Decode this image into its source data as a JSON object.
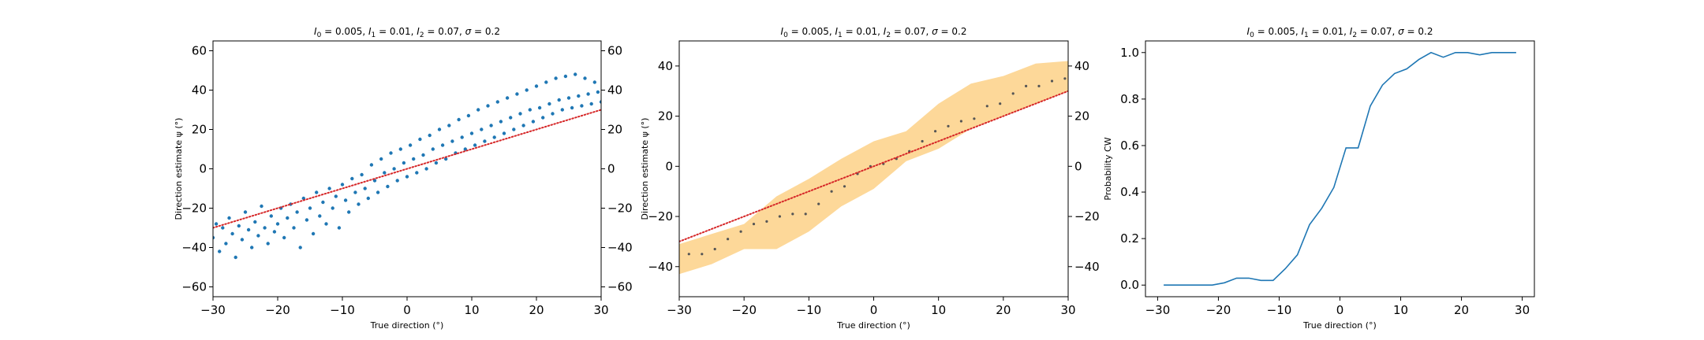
{
  "chart_data": [
    {
      "type": "scatter",
      "title": "I_0 = 0.005, I_1 = 0.01, I_2 = 0.07, σ = 0.2",
      "title_parts": {
        "p0": "I",
        "s0": "0",
        "v0": " = 0.005, ",
        "p1": "I",
        "s1": "1",
        "v1": " = 0.01, ",
        "p2": "I",
        "s2": "2",
        "v2": " = 0.07, ",
        "sig": "σ",
        "vs": " = 0.2"
      },
      "xlabel": "True direction (°)",
      "ylabel": "Direction estimate ψ (°)",
      "xlim": [
        -30,
        30
      ],
      "ylim": [
        -65,
        65
      ],
      "xticks": [
        "−30",
        "−20",
        "−10",
        "0",
        "10",
        "20",
        "30"
      ],
      "xtick_values": [
        -30,
        -20,
        -10,
        0,
        10,
        20,
        30
      ],
      "yticks": [
        "−60",
        "−40",
        "−20",
        "0",
        "20",
        "40",
        "60"
      ],
      "ytick_values": [
        -60,
        -40,
        -20,
        0,
        20,
        40,
        60
      ],
      "twin_y": true,
      "grid": false,
      "series": [
        {
          "kind": "scatter",
          "color": "#1f77b4",
          "points": [
            [
              -30,
              -35
            ],
            [
              -29.5,
              -28
            ],
            [
              -29,
              -42
            ],
            [
              -28.5,
              -30
            ],
            [
              -28,
              -38
            ],
            [
              -27.5,
              -25
            ],
            [
              -27,
              -33
            ],
            [
              -26.5,
              -45
            ],
            [
              -26,
              -29
            ],
            [
              -25.5,
              -36
            ],
            [
              -25,
              -22
            ],
            [
              -24.5,
              -31
            ],
            [
              -24,
              -40
            ],
            [
              -23.5,
              -27
            ],
            [
              -23,
              -34
            ],
            [
              -22.5,
              -19
            ],
            [
              -22,
              -30
            ],
            [
              -21.5,
              -38
            ],
            [
              -21,
              -24
            ],
            [
              -20.5,
              -32
            ],
            [
              -20,
              -28
            ],
            [
              -19.5,
              -20
            ],
            [
              -19,
              -35
            ],
            [
              -18.5,
              -25
            ],
            [
              -18,
              -18
            ],
            [
              -17.5,
              -30
            ],
            [
              -17,
              -22
            ],
            [
              -16.5,
              -40
            ],
            [
              -16,
              -15
            ],
            [
              -15.5,
              -26
            ],
            [
              -15,
              -20
            ],
            [
              -14.5,
              -33
            ],
            [
              -14,
              -12
            ],
            [
              -13.5,
              -24
            ],
            [
              -13,
              -17
            ],
            [
              -12.5,
              -28
            ],
            [
              -12,
              -10
            ],
            [
              -11.5,
              -20
            ],
            [
              -11,
              -14
            ],
            [
              -10.5,
              -30
            ],
            [
              -10,
              -8
            ],
            [
              -9.5,
              -16
            ],
            [
              -9,
              -22
            ],
            [
              -8.5,
              -5
            ],
            [
              -8,
              -12
            ],
            [
              -7.5,
              -18
            ],
            [
              -7,
              -3
            ],
            [
              -6.5,
              -10
            ],
            [
              -6,
              -15
            ],
            [
              -5.5,
              2
            ],
            [
              -5,
              -6
            ],
            [
              -4.5,
              -12
            ],
            [
              -4,
              5
            ],
            [
              -3.5,
              -2
            ],
            [
              -3,
              -9
            ],
            [
              -2.5,
              8
            ],
            [
              -2,
              0
            ],
            [
              -1.5,
              -6
            ],
            [
              -1,
              10
            ],
            [
              -0.5,
              3
            ],
            [
              0,
              -4
            ],
            [
              0.5,
              12
            ],
            [
              1,
              5
            ],
            [
              1.5,
              -2
            ],
            [
              2,
              15
            ],
            [
              2.5,
              7
            ],
            [
              3,
              0
            ],
            [
              3.5,
              17
            ],
            [
              4,
              10
            ],
            [
              4.5,
              3
            ],
            [
              5,
              20
            ],
            [
              5.5,
              12
            ],
            [
              6,
              5
            ],
            [
              6.5,
              22
            ],
            [
              7,
              14
            ],
            [
              7.5,
              8
            ],
            [
              8,
              25
            ],
            [
              8.5,
              16
            ],
            [
              9,
              10
            ],
            [
              9.5,
              27
            ],
            [
              10,
              18
            ],
            [
              10.5,
              12
            ],
            [
              11,
              30
            ],
            [
              11.5,
              20
            ],
            [
              12,
              14
            ],
            [
              12.5,
              32
            ],
            [
              13,
              22
            ],
            [
              13.5,
              16
            ],
            [
              14,
              34
            ],
            [
              14.5,
              24
            ],
            [
              15,
              18
            ],
            [
              15.5,
              36
            ],
            [
              16,
              26
            ],
            [
              16.5,
              20
            ],
            [
              17,
              38
            ],
            [
              17.5,
              28
            ],
            [
              18,
              22
            ],
            [
              18.5,
              40
            ],
            [
              19,
              30
            ],
            [
              19.5,
              24
            ],
            [
              20,
              42
            ],
            [
              20.5,
              31
            ],
            [
              21,
              26
            ],
            [
              21.5,
              44
            ],
            [
              22,
              33
            ],
            [
              22.5,
              28
            ],
            [
              23,
              46
            ],
            [
              23.5,
              35
            ],
            [
              24,
              30
            ],
            [
              24.5,
              47
            ],
            [
              25,
              36
            ],
            [
              25.5,
              31
            ],
            [
              26,
              48
            ],
            [
              26.5,
              37
            ],
            [
              27,
              32
            ],
            [
              27.5,
              46
            ],
            [
              28,
              38
            ],
            [
              28.5,
              33
            ],
            [
              29,
              44
            ],
            [
              29.5,
              39
            ],
            [
              30,
              34
            ]
          ]
        },
        {
          "kind": "line",
          "style": "dotted",
          "color": "#d62728",
          "points": [
            [
              -30,
              -30
            ],
            [
              30,
              30
            ]
          ]
        }
      ]
    },
    {
      "type": "line",
      "title": "I_0 = 0.005, I_1 = 0.01, I_2 = 0.07, σ = 0.2",
      "title_parts": {
        "p0": "I",
        "s0": "0",
        "v0": " = 0.005, ",
        "p1": "I",
        "s1": "1",
        "v1": " = 0.01, ",
        "p2": "I",
        "s2": "2",
        "v2": " = 0.07, ",
        "sig": "σ",
        "vs": " = 0.2"
      },
      "xlabel": "True direction (°)",
      "ylabel": "Direction estimate ψ (°)",
      "xlim": [
        -30,
        30
      ],
      "ylim": [
        -52,
        50
      ],
      "xticks": [
        "−30",
        "−20",
        "−10",
        "0",
        "10",
        "20",
        "30"
      ],
      "xtick_values": [
        -30,
        -20,
        -10,
        0,
        10,
        20,
        30
      ],
      "yticks": [
        "−40",
        "−20",
        "0",
        "20",
        "40"
      ],
      "ytick_values": [
        -40,
        -20,
        0,
        20,
        40
      ],
      "twin_y": true,
      "grid": false,
      "band_color": "#fdd899",
      "band": {
        "x": [
          -30,
          -25,
          -20,
          -15,
          -10,
          -5,
          0,
          5,
          10,
          15,
          20,
          25,
          30
        ],
        "lower": [
          -43,
          -39,
          -33,
          -33,
          -26,
          -16,
          -9,
          2,
          7,
          15,
          20,
          25,
          30
        ],
        "upper": [
          -31,
          -27,
          -23,
          -12,
          -5,
          3,
          10,
          14,
          25,
          33,
          36,
          41,
          42
        ]
      },
      "series": [
        {
          "kind": "points",
          "color": "#555555",
          "x": [
            -28.5,
            -26.5,
            -24.5,
            -22.5,
            -20.5,
            -18.5,
            -16.5,
            -14.5,
            -12.5,
            -10.5,
            -8.5,
            -6.5,
            -4.5,
            -2.5,
            -0.5,
            1.5,
            3.5,
            5.5,
            7.5,
            9.5,
            11.5,
            13.5,
            15.5,
            17.5,
            19.5,
            21.5,
            23.5,
            25.5,
            27.5,
            29.5
          ],
          "y": [
            -35,
            -35,
            -33,
            -29,
            -26,
            -23,
            -22,
            -20,
            -19,
            -19,
            -15,
            -10,
            -8,
            -3,
            0,
            1,
            3,
            6,
            10,
            14,
            16,
            18,
            19,
            24,
            25,
            29,
            32,
            32,
            34,
            35
          ]
        },
        {
          "kind": "line",
          "style": "dotted",
          "color": "#d62728",
          "x": [
            -30,
            30
          ],
          "y": [
            -30,
            30
          ]
        }
      ]
    },
    {
      "type": "line",
      "title": "I_0 = 0.005, I_1 = 0.01, I_2 = 0.07, σ = 0.2",
      "title_parts": {
        "p0": "I",
        "s0": "0",
        "v0": " = 0.005, ",
        "p1": "I",
        "s1": "1",
        "v1": " = 0.01, ",
        "p2": "I",
        "s2": "2",
        "v2": " = 0.07, ",
        "sig": "σ",
        "vs": " = 0.2"
      },
      "xlabel": "True direction (°)",
      "ylabel": "Probability CW",
      "xlim": [
        -32,
        32
      ],
      "ylim": [
        -0.05,
        1.05
      ],
      "xticks": [
        "−30",
        "−20",
        "−10",
        "0",
        "10",
        "20",
        "30"
      ],
      "xtick_values": [
        -30,
        -20,
        -10,
        0,
        10,
        20,
        30
      ],
      "yticks": [
        "0.0",
        "0.2",
        "0.4",
        "0.6",
        "0.8",
        "1.0"
      ],
      "ytick_values": [
        0,
        0.2,
        0.4,
        0.6,
        0.8,
        1.0
      ],
      "twin_y": false,
      "grid": false,
      "series": [
        {
          "kind": "line",
          "color": "#1f77b4",
          "x": [
            -29,
            -27,
            -25,
            -23,
            -21,
            -19,
            -17,
            -15,
            -13,
            -11,
            -9,
            -7,
            -5,
            -3,
            -1,
            1,
            3,
            5,
            7,
            9,
            11,
            13,
            15,
            17,
            19,
            21,
            23,
            25,
            27,
            29
          ],
          "y": [
            0,
            0,
            0,
            0,
            0,
            0.01,
            0.03,
            0.03,
            0.02,
            0.02,
            0.07,
            0.13,
            0.26,
            0.33,
            0.42,
            0.59,
            0.59,
            0.77,
            0.86,
            0.91,
            0.93,
            0.97,
            1.0,
            0.98,
            1.0,
            1.0,
            0.99,
            1.0,
            1.0,
            1.0
          ]
        }
      ]
    }
  ]
}
